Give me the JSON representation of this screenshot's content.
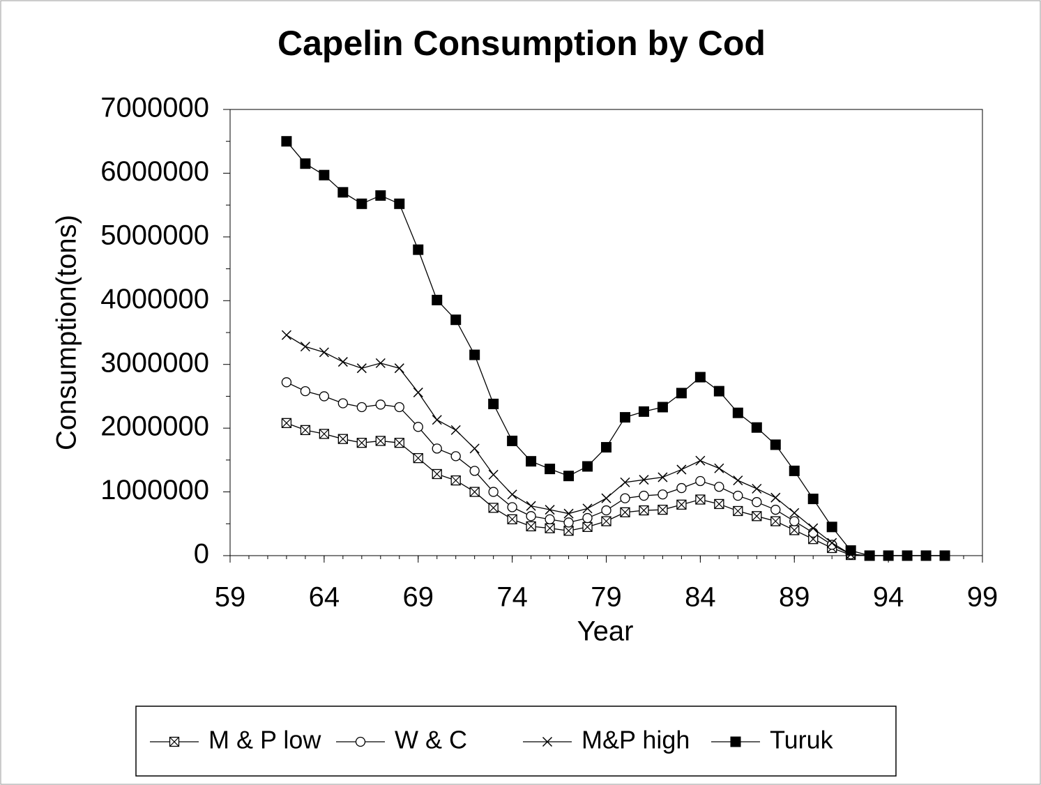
{
  "chart_data": {
    "type": "line",
    "title": "Capelin Consumption by Cod",
    "x_label": "Year",
    "y_label": "Consumption(tons)",
    "x": [
      62,
      63,
      64,
      65,
      66,
      67,
      68,
      69,
      70,
      71,
      72,
      73,
      74,
      75,
      76,
      77,
      78,
      79,
      80,
      81,
      82,
      83,
      84,
      85,
      86,
      87,
      88,
      89,
      90,
      91,
      92,
      93,
      94,
      95,
      96,
      97
    ],
    "series": [
      {
        "name": "M & P low",
        "color": "#000000",
        "marker": "boxed-x",
        "values": [
          2080000,
          1970000,
          1910000,
          1830000,
          1770000,
          1800000,
          1770000,
          1530000,
          1280000,
          1180000,
          1000000,
          750000,
          570000,
          460000,
          430000,
          390000,
          450000,
          540000,
          680000,
          710000,
          720000,
          800000,
          880000,
          810000,
          700000,
          620000,
          540000,
          400000,
          260000,
          120000,
          10000,
          0,
          0,
          0,
          0,
          0
        ]
      },
      {
        "name": "W & C",
        "color": "#000000",
        "marker": "circle",
        "values": [
          2720000,
          2580000,
          2500000,
          2390000,
          2330000,
          2370000,
          2330000,
          2020000,
          1680000,
          1560000,
          1330000,
          1000000,
          760000,
          620000,
          570000,
          520000,
          590000,
          710000,
          900000,
          940000,
          960000,
          1060000,
          1170000,
          1080000,
          940000,
          840000,
          720000,
          540000,
          360000,
          170000,
          20000,
          0,
          0,
          0,
          0,
          0
        ]
      },
      {
        "name": "M&P high",
        "color": "#000000",
        "marker": "x",
        "values": [
          3460000,
          3280000,
          3190000,
          3040000,
          2940000,
          3020000,
          2940000,
          2560000,
          2130000,
          1970000,
          1680000,
          1270000,
          960000,
          780000,
          720000,
          660000,
          740000,
          900000,
          1150000,
          1190000,
          1230000,
          1350000,
          1490000,
          1370000,
          1180000,
          1050000,
          910000,
          670000,
          430000,
          200000,
          20000,
          0,
          0,
          0,
          0,
          0
        ]
      },
      {
        "name": "Turuk",
        "color": "#000000",
        "marker": "filled-square",
        "values": [
          6500000,
          6150000,
          5970000,
          5700000,
          5520000,
          5650000,
          5520000,
          4800000,
          4010000,
          3700000,
          3150000,
          2380000,
          1800000,
          1480000,
          1360000,
          1250000,
          1400000,
          1700000,
          2170000,
          2260000,
          2330000,
          2550000,
          2800000,
          2580000,
          2240000,
          2010000,
          1740000,
          1330000,
          890000,
          450000,
          80000,
          0,
          0,
          0,
          0,
          0
        ]
      }
    ],
    "xlim": [
      59,
      99
    ],
    "xticks": [
      59,
      64,
      69,
      74,
      79,
      84,
      89,
      94,
      99
    ],
    "ylim": [
      0,
      7000000
    ],
    "yticks": [
      0,
      1000000,
      2000000,
      3000000,
      4000000,
      5000000,
      6000000,
      7000000
    ],
    "grid": false,
    "legend": "bottom"
  }
}
